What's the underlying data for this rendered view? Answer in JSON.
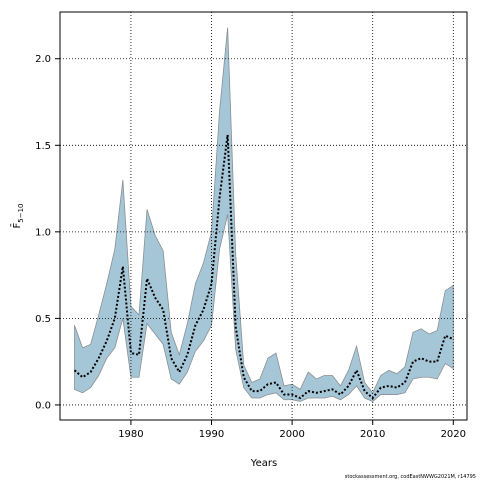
{
  "chart_data": {
    "type": "line_band",
    "xlabel": "Years",
    "ylabel": "F̄",
    "ylabel_subscript": "5−10",
    "footnote": "stockassessment.org, codEastNWWG2021M, r14795",
    "x": [
      1973,
      1974,
      1975,
      1976,
      1977,
      1978,
      1979,
      1980,
      1981,
      1982,
      1983,
      1984,
      1985,
      1986,
      1987,
      1988,
      1989,
      1990,
      1991,
      1992,
      1993,
      1994,
      1995,
      1996,
      1997,
      1998,
      1999,
      2000,
      2001,
      2002,
      2003,
      2004,
      2005,
      2006,
      2007,
      2008,
      2009,
      2010,
      2011,
      2012,
      2013,
      2014,
      2015,
      2016,
      2017,
      2018,
      2019,
      2020
    ],
    "values": [
      0.2,
      0.16,
      0.19,
      0.27,
      0.37,
      0.5,
      0.8,
      0.3,
      0.29,
      0.73,
      0.62,
      0.55,
      0.27,
      0.19,
      0.29,
      0.46,
      0.55,
      0.7,
      1.2,
      1.56,
      0.45,
      0.16,
      0.08,
      0.08,
      0.12,
      0.13,
      0.06,
      0.06,
      0.04,
      0.08,
      0.07,
      0.08,
      0.09,
      0.06,
      0.11,
      0.2,
      0.08,
      0.04,
      0.1,
      0.11,
      0.1,
      0.13,
      0.25,
      0.27,
      0.25,
      0.25,
      0.4,
      0.38
    ],
    "lower": [
      0.09,
      0.07,
      0.1,
      0.17,
      0.27,
      0.33,
      0.5,
      0.16,
      0.16,
      0.47,
      0.41,
      0.35,
      0.15,
      0.12,
      0.19,
      0.31,
      0.37,
      0.46,
      0.9,
      1.1,
      0.32,
      0.1,
      0.04,
      0.04,
      0.06,
      0.07,
      0.03,
      0.03,
      0.02,
      0.04,
      0.04,
      0.04,
      0.05,
      0.03,
      0.06,
      0.11,
      0.04,
      0.02,
      0.06,
      0.06,
      0.06,
      0.07,
      0.15,
      0.16,
      0.16,
      0.15,
      0.24,
      0.21
    ],
    "upper": [
      0.46,
      0.33,
      0.35,
      0.52,
      0.7,
      0.9,
      1.3,
      0.57,
      0.52,
      1.13,
      0.98,
      0.89,
      0.42,
      0.29,
      0.47,
      0.7,
      0.82,
      1.0,
      1.7,
      2.18,
      0.87,
      0.23,
      0.13,
      0.15,
      0.27,
      0.3,
      0.11,
      0.12,
      0.09,
      0.19,
      0.15,
      0.17,
      0.17,
      0.11,
      0.2,
      0.34,
      0.13,
      0.07,
      0.17,
      0.2,
      0.18,
      0.22,
      0.42,
      0.44,
      0.41,
      0.43,
      0.66,
      0.69
    ],
    "color": "#000000",
    "band_color": "#a5c6d7",
    "band_edge_color": "#8a8f93",
    "xlim": [
      1971.2,
      2021.7
    ],
    "ylim": [
      -0.087,
      2.27
    ],
    "xticks": [
      1980,
      1990,
      2000,
      2010,
      2020
    ],
    "yticks": [
      {
        "value": 0,
        "label": "0.0"
      },
      0.5,
      {
        "value": 1,
        "label": "1.0"
      },
      1.5,
      {
        "value": 2,
        "label": "2.0"
      }
    ],
    "grid": true
  }
}
